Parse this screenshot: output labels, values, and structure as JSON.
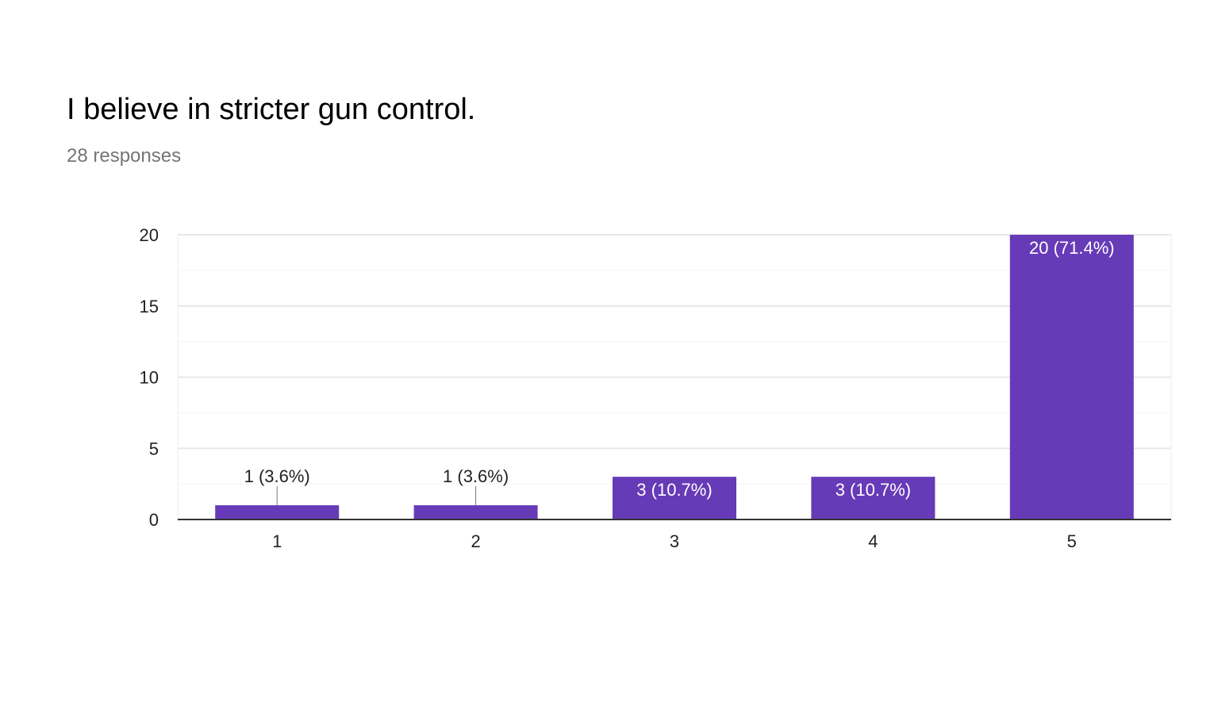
{
  "question": {
    "title": "I believe in stricter gun control.",
    "responses": "28 responses"
  },
  "colors": {
    "bar": "#673ab7",
    "gridline": "#e8e8e8",
    "axis": "#333333",
    "label_inside": "#ffffff",
    "label_outside": "#222222"
  },
  "chart_data": {
    "type": "bar",
    "categories": [
      "1",
      "2",
      "3",
      "4",
      "5"
    ],
    "values": [
      1,
      1,
      3,
      3,
      20
    ],
    "data_labels": [
      "1 (3.6%)",
      "1 (3.6%)",
      "3 (10.7%)",
      "3 (10.7%)",
      "20 (71.4%)"
    ],
    "ylim": [
      0,
      20
    ],
    "yticks": [
      "0",
      "5",
      "10",
      "15",
      "20"
    ],
    "grid": true
  }
}
